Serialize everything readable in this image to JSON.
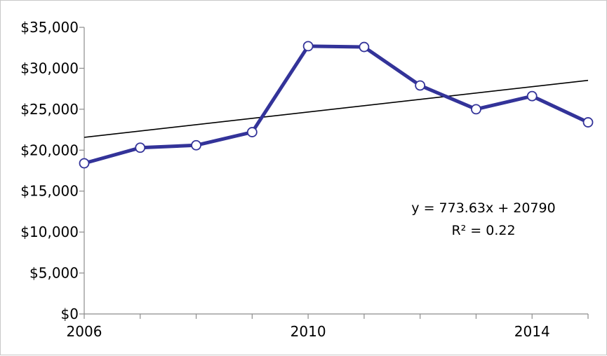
{
  "chart_data": {
    "type": "line",
    "title": "",
    "xlabel": "",
    "ylabel": "",
    "x": [
      2006,
      2007,
      2008,
      2009,
      2010,
      2011,
      2012,
      2013,
      2014,
      2015
    ],
    "series": [
      {
        "values": [
          18400,
          20300,
          20600,
          22200,
          32700,
          32600,
          27900,
          25000,
          26600,
          23400
        ],
        "color": "#333399",
        "marker": "hollow-circle"
      }
    ],
    "trendline": {
      "type": "linear",
      "slope": 773.63,
      "intercept": 20790,
      "r_squared": 0.22,
      "equation_label": "y = 773.63x + 20790",
      "r2_label": "R² = 0.22",
      "color": "#000000"
    },
    "ylim": [
      0,
      35000
    ],
    "yticks": [
      0,
      5000,
      10000,
      15000,
      20000,
      25000,
      30000,
      35000
    ],
    "ytick_labels": [
      "$0",
      "$5,000",
      "$10,000",
      "$15,000",
      "$20,000",
      "$25,000",
      "$30,000",
      "$35,000"
    ],
    "xlim": [
      2006,
      2015
    ],
    "xtick_labels": [
      "2006",
      "2010",
      "2014"
    ],
    "xtick_values": [
      2006,
      2010,
      2014
    ],
    "grid": false,
    "legend": "none"
  }
}
